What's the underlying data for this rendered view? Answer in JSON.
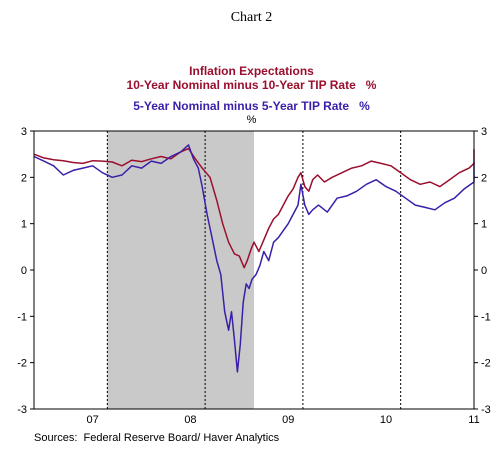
{
  "chart_data": {
    "type": "line",
    "chart_number": "Chart 2",
    "title": "Inflation Expectations",
    "unit": "%",
    "ylim": [
      -3,
      3
    ],
    "yticks": [
      -3,
      -2,
      -1,
      0,
      1,
      2,
      3
    ],
    "xlim": [
      2006.75,
      2011.25
    ],
    "xtick_labels": [
      {
        "label": "07",
        "x": 2007.0
      },
      {
        "label": "08",
        "x": 2008.0
      },
      {
        "label": "09",
        "x": 2009.0
      },
      {
        "label": "10",
        "x": 2010.0
      },
      {
        "label": "11",
        "x": 2011.0
      }
    ],
    "vertical_lines": [
      2007.5,
      2008.5,
      2009.5,
      2010.5
    ],
    "recession": {
      "start": 2007.5,
      "end": 2009.0
    },
    "grid": "dotted vertical lines",
    "series": [
      {
        "name": "10-Year Nominal minus 10-Year TIP Rate",
        "legend_label": "10-Year Nominal minus 10-Year TIP Rate   %",
        "color": "#9a0f2e",
        "points": [
          [
            2006.75,
            2.5
          ],
          [
            2006.85,
            2.42
          ],
          [
            2006.95,
            2.38
          ],
          [
            2007.05,
            2.36
          ],
          [
            2007.15,
            2.32
          ],
          [
            2007.25,
            2.3
          ],
          [
            2007.35,
            2.36
          ],
          [
            2007.45,
            2.35
          ],
          [
            2007.55,
            2.33
          ],
          [
            2007.65,
            2.25
          ],
          [
            2007.75,
            2.37
          ],
          [
            2007.85,
            2.34
          ],
          [
            2007.95,
            2.4
          ],
          [
            2008.05,
            2.45
          ],
          [
            2008.15,
            2.4
          ],
          [
            2008.25,
            2.55
          ],
          [
            2008.33,
            2.62
          ],
          [
            2008.4,
            2.4
          ],
          [
            2008.47,
            2.2
          ],
          [
            2008.55,
            2.0
          ],
          [
            2008.62,
            1.5
          ],
          [
            2008.68,
            1.0
          ],
          [
            2008.74,
            0.6
          ],
          [
            2008.8,
            0.35
          ],
          [
            2008.85,
            0.3
          ],
          [
            2008.9,
            0.05
          ],
          [
            2008.93,
            0.2
          ],
          [
            2008.97,
            0.45
          ],
          [
            2009.0,
            0.6
          ],
          [
            2009.05,
            0.4
          ],
          [
            2009.1,
            0.65
          ],
          [
            2009.15,
            0.9
          ],
          [
            2009.2,
            1.1
          ],
          [
            2009.25,
            1.2
          ],
          [
            2009.3,
            1.4
          ],
          [
            2009.35,
            1.6
          ],
          [
            2009.4,
            1.75
          ],
          [
            2009.45,
            2.0
          ],
          [
            2009.48,
            2.1
          ],
          [
            2009.52,
            1.8
          ],
          [
            2009.56,
            1.7
          ],
          [
            2009.6,
            1.95
          ],
          [
            2009.65,
            2.05
          ],
          [
            2009.72,
            1.9
          ],
          [
            2009.8,
            2.0
          ],
          [
            2009.9,
            2.1
          ],
          [
            2010.0,
            2.2
          ],
          [
            2010.1,
            2.25
          ],
          [
            2010.2,
            2.35
          ],
          [
            2010.3,
            2.3
          ],
          [
            2010.4,
            2.25
          ],
          [
            2010.5,
            2.1
          ],
          [
            2010.6,
            1.95
          ],
          [
            2010.7,
            1.85
          ],
          [
            2010.8,
            1.9
          ],
          [
            2010.9,
            1.8
          ],
          [
            2011.0,
            1.95
          ],
          [
            2011.1,
            2.1
          ],
          [
            2011.2,
            2.2
          ],
          [
            2011.3,
            2.3
          ],
          [
            2011.4,
            2.4
          ],
          [
            2011.5,
            2.5
          ],
          [
            2011.6,
            2.6
          ],
          [
            2011.7,
            2.55
          ]
        ]
      },
      {
        "name": "5-Year Nominal minus 5-Year TIP Rate",
        "legend_label": "5-Year Nominal minus 5-Year TIP Rate   %",
        "color": "#3b1fa8",
        "points": [
          [
            2006.75,
            2.45
          ],
          [
            2006.85,
            2.35
          ],
          [
            2006.95,
            2.25
          ],
          [
            2007.05,
            2.05
          ],
          [
            2007.15,
            2.15
          ],
          [
            2007.25,
            2.2
          ],
          [
            2007.35,
            2.25
          ],
          [
            2007.45,
            2.1
          ],
          [
            2007.55,
            2.0
          ],
          [
            2007.65,
            2.05
          ],
          [
            2007.75,
            2.25
          ],
          [
            2007.85,
            2.2
          ],
          [
            2007.95,
            2.35
          ],
          [
            2008.05,
            2.3
          ],
          [
            2008.15,
            2.45
          ],
          [
            2008.25,
            2.55
          ],
          [
            2008.33,
            2.7
          ],
          [
            2008.38,
            2.4
          ],
          [
            2008.43,
            2.2
          ],
          [
            2008.47,
            1.8
          ],
          [
            2008.52,
            1.2
          ],
          [
            2008.57,
            0.7
          ],
          [
            2008.62,
            0.2
          ],
          [
            2008.66,
            -0.1
          ],
          [
            2008.7,
            -0.9
          ],
          [
            2008.74,
            -1.3
          ],
          [
            2008.77,
            -0.9
          ],
          [
            2008.8,
            -1.5
          ],
          [
            2008.83,
            -2.2
          ],
          [
            2008.86,
            -1.6
          ],
          [
            2008.89,
            -0.7
          ],
          [
            2008.92,
            -0.3
          ],
          [
            2008.95,
            -0.4
          ],
          [
            2008.98,
            -0.2
          ],
          [
            2009.02,
            -0.1
          ],
          [
            2009.06,
            0.1
          ],
          [
            2009.1,
            0.4
          ],
          [
            2009.15,
            0.2
          ],
          [
            2009.2,
            0.6
          ],
          [
            2009.25,
            0.7
          ],
          [
            2009.3,
            0.85
          ],
          [
            2009.35,
            1.0
          ],
          [
            2009.4,
            1.2
          ],
          [
            2009.45,
            1.4
          ],
          [
            2009.48,
            1.85
          ],
          [
            2009.52,
            1.4
          ],
          [
            2009.56,
            1.2
          ],
          [
            2009.6,
            1.3
          ],
          [
            2009.66,
            1.4
          ],
          [
            2009.75,
            1.25
          ],
          [
            2009.85,
            1.55
          ],
          [
            2009.95,
            1.6
          ],
          [
            2010.05,
            1.7
          ],
          [
            2010.15,
            1.85
          ],
          [
            2010.25,
            1.95
          ],
          [
            2010.35,
            1.8
          ],
          [
            2010.45,
            1.7
          ],
          [
            2010.55,
            1.55
          ],
          [
            2010.65,
            1.4
          ],
          [
            2010.75,
            1.35
          ],
          [
            2010.85,
            1.3
          ],
          [
            2010.95,
            1.45
          ],
          [
            2011.05,
            1.55
          ],
          [
            2011.15,
            1.75
          ],
          [
            2011.25,
            1.9
          ],
          [
            2011.35,
            2.0
          ],
          [
            2011.45,
            2.1
          ],
          [
            2011.55,
            2.25
          ],
          [
            2011.65,
            2.3
          ],
          [
            2011.72,
            2.32
          ]
        ]
      }
    ],
    "source": "Sources:  Federal Reserve Board/ Haver Analytics"
  },
  "colors": {
    "series_1": "#9a0f2e",
    "series_2": "#3b1fa8",
    "recession_shade": "#c9c9c9"
  }
}
